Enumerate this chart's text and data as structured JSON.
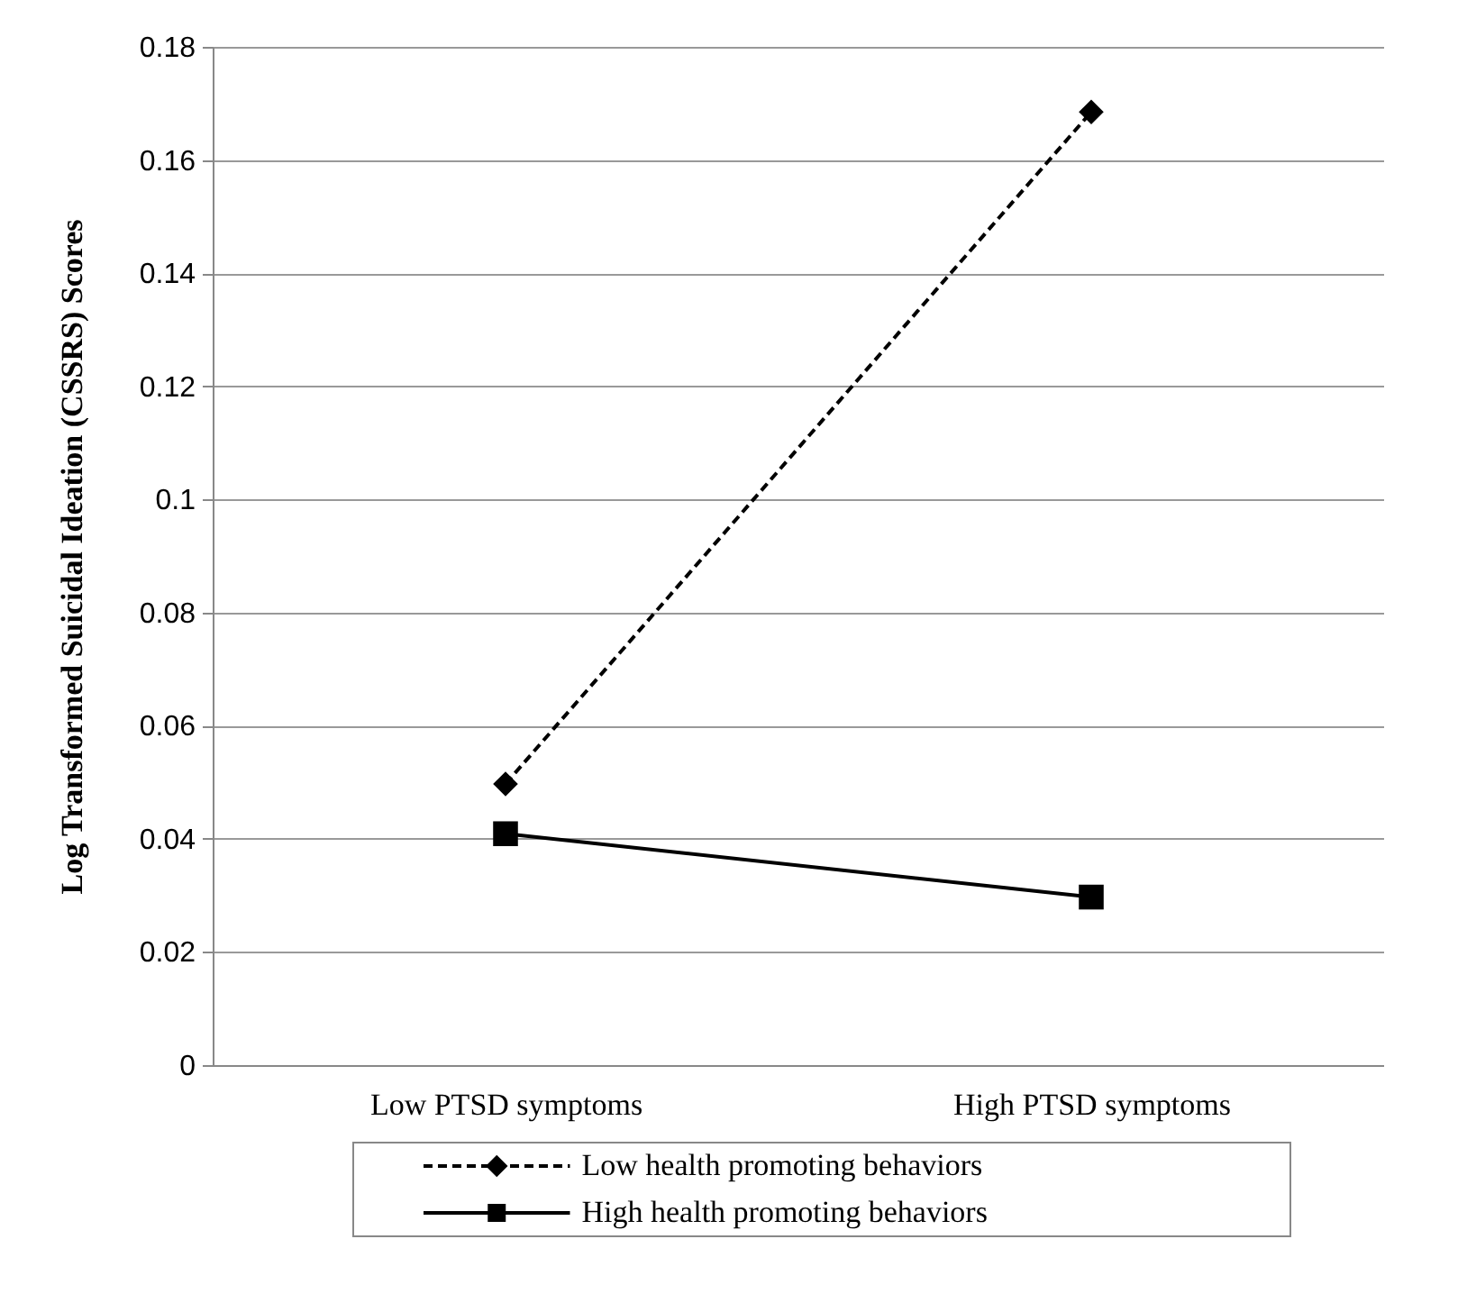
{
  "chart_data": {
    "type": "line",
    "ylabel": "Log Transformed Suicidal Ideation (CSSRS) Scores",
    "categories": [
      "Low PTSD symptoms",
      "High PTSD symptoms"
    ],
    "series": [
      {
        "name": "Low health promoting behaviors",
        "color": "#000000",
        "values": [
          0.0497,
          0.1685
        ],
        "line_style": "dashed",
        "marker": "diamond"
      },
      {
        "name": "High health promoting behaviors",
        "color": "#000000",
        "values": [
          0.0409,
          0.0297
        ],
        "line_style": "solid",
        "marker": "square"
      }
    ],
    "ylim": [
      0,
      0.18
    ],
    "yticks": [
      0,
      0.02,
      0.04,
      0.06,
      0.08,
      0.1,
      0.12,
      0.14,
      0.16,
      0.18
    ],
    "grid": "y",
    "legend": "bottom"
  }
}
